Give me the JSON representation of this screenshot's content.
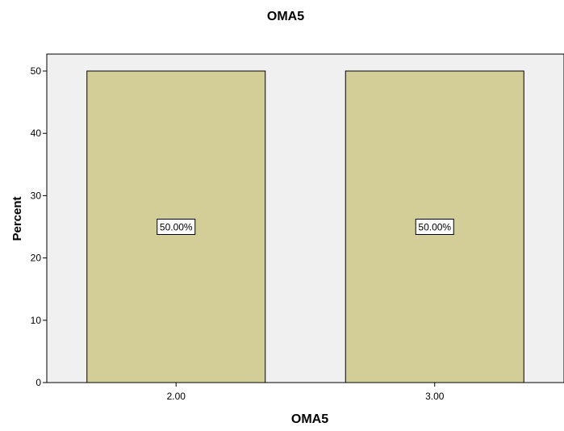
{
  "chart_data": {
    "type": "bar",
    "title": "OMA5",
    "xlabel": "OMA5",
    "ylabel": "Percent",
    "categories": [
      "2.00",
      "3.00"
    ],
    "values": [
      50,
      50
    ],
    "data_labels": [
      "50.00%",
      "50.00%"
    ],
    "ylim": [
      0,
      50
    ],
    "yticks": [
      "0",
      "10",
      "20",
      "30",
      "40",
      "50"
    ],
    "grid": false,
    "legend": "none",
    "colors": {
      "bar_fill": "#d3ce97",
      "bar_stroke": "#000000",
      "plot_background": "#f0f0f0",
      "axis": "#000000",
      "text": "#000000"
    }
  }
}
